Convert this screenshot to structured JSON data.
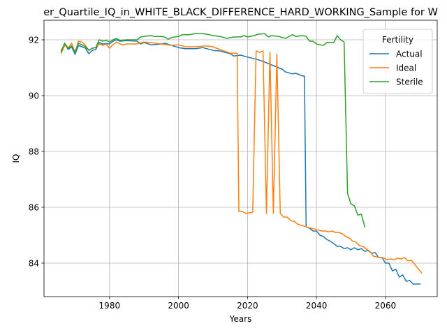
{
  "chart_data": {
    "type": "line",
    "title": "er_Quartile_IQ_in_WHITE_BLACK_DIFFERENCE_HARD_WORKING_Sample for W",
    "xlabel": "Years",
    "ylabel": "IQ",
    "xlim": [
      1961,
      2075
    ],
    "ylim": [
      82.8,
      92.7
    ],
    "x_ticks": [
      1980,
      2000,
      2020,
      2040,
      2060
    ],
    "y_ticks": [
      84,
      86,
      88,
      90,
      92
    ],
    "grid": true,
    "legend": {
      "title": "Fertility",
      "placement": "top-right"
    },
    "series": [
      {
        "name": "Actual",
        "color": "#1f77b4",
        "points": [
          [
            1966,
            91.62
          ],
          [
            1967,
            91.85
          ],
          [
            1968,
            91.65
          ],
          [
            1969,
            91.75
          ],
          [
            1970,
            91.48
          ],
          [
            1971,
            91.8
          ],
          [
            1972,
            91.75
          ],
          [
            1973,
            91.7
          ],
          [
            1974,
            91.5
          ],
          [
            1975,
            91.62
          ],
          [
            1976,
            91.65
          ],
          [
            1977,
            91.9
          ],
          [
            1978,
            91.85
          ],
          [
            1979,
            91.87
          ],
          [
            1980,
            91.85
          ],
          [
            1981,
            91.95
          ],
          [
            1982,
            92.0
          ],
          [
            1983,
            91.95
          ],
          [
            1985,
            91.97
          ],
          [
            1988,
            91.95
          ],
          [
            1989,
            91.85
          ],
          [
            1990,
            91.9
          ],
          [
            1992,
            91.82
          ],
          [
            1995,
            91.85
          ],
          [
            1996,
            91.88
          ],
          [
            1998,
            91.8
          ],
          [
            2000,
            91.72
          ],
          [
            2002,
            91.68
          ],
          [
            2005,
            91.68
          ],
          [
            2007,
            91.72
          ],
          [
            2010,
            91.62
          ],
          [
            2012,
            91.6
          ],
          [
            2015,
            91.5
          ],
          [
            2016,
            91.42
          ],
          [
            2018,
            91.45
          ],
          [
            2020,
            91.38
          ],
          [
            2022,
            91.32
          ],
          [
            2024,
            91.25
          ],
          [
            2026,
            91.15
          ],
          [
            2028,
            91.05
          ],
          [
            2030,
            90.95
          ],
          [
            2031,
            90.85
          ],
          [
            2033,
            90.78
          ],
          [
            2034,
            90.8
          ],
          [
            2036,
            90.7
          ],
          [
            2036.5,
            90.7
          ],
          [
            2037,
            85.3
          ],
          [
            2038,
            85.25
          ],
          [
            2039,
            85.15
          ],
          [
            2040,
            85.15
          ],
          [
            2041,
            85.0
          ],
          [
            2042,
            84.95
          ],
          [
            2043,
            84.85
          ],
          [
            2044,
            84.78
          ],
          [
            2045,
            84.7
          ],
          [
            2046,
            84.6
          ],
          [
            2047,
            84.6
          ],
          [
            2048,
            84.52
          ],
          [
            2049,
            84.55
          ],
          [
            2050,
            84.48
          ],
          [
            2051,
            84.55
          ],
          [
            2052,
            84.48
          ],
          [
            2053,
            84.52
          ],
          [
            2054,
            84.42
          ],
          [
            2055,
            84.45
          ],
          [
            2056,
            84.35
          ],
          [
            2057,
            84.38
          ],
          [
            2058,
            84.2
          ],
          [
            2059,
            84.2
          ],
          [
            2060,
            84.0
          ],
          [
            2061,
            84.0
          ],
          [
            2062,
            83.72
          ],
          [
            2063,
            83.78
          ],
          [
            2064,
            83.5
          ],
          [
            2065,
            83.58
          ],
          [
            2066,
            83.35
          ],
          [
            2067,
            83.38
          ],
          [
            2068,
            83.25
          ],
          [
            2069,
            83.25
          ],
          [
            2070,
            83.25
          ]
        ]
      },
      {
        "name": "Ideal",
        "color": "#ff7f0e",
        "points": [
          [
            1966,
            91.52
          ],
          [
            1967,
            91.8
          ],
          [
            1968,
            91.7
          ],
          [
            1969,
            91.88
          ],
          [
            1970,
            91.55
          ],
          [
            1971,
            91.95
          ],
          [
            1972,
            91.92
          ],
          [
            1973,
            91.8
          ],
          [
            1974,
            91.62
          ],
          [
            1975,
            91.7
          ],
          [
            1976,
            91.72
          ],
          [
            1977,
            91.85
          ],
          [
            1978,
            91.8
          ],
          [
            1979,
            91.85
          ],
          [
            1980,
            91.7
          ],
          [
            1981,
            91.82
          ],
          [
            1982,
            91.92
          ],
          [
            1983,
            91.85
          ],
          [
            1984,
            91.82
          ],
          [
            1985,
            91.85
          ],
          [
            1988,
            91.85
          ],
          [
            1990,
            91.92
          ],
          [
            1992,
            91.9
          ],
          [
            1995,
            91.85
          ],
          [
            1998,
            91.8
          ],
          [
            2000,
            91.82
          ],
          [
            2002,
            91.75
          ],
          [
            2005,
            91.75
          ],
          [
            2008,
            91.78
          ],
          [
            2010,
            91.75
          ],
          [
            2012,
            91.65
          ],
          [
            2015,
            91.52
          ],
          [
            2017,
            91.52
          ],
          [
            2017.5,
            85.85
          ],
          [
            2018.5,
            85.85
          ],
          [
            2019.5,
            85.78
          ],
          [
            2021.5,
            85.82
          ],
          [
            2022.5,
            91.6
          ],
          [
            2023.5,
            91.55
          ],
          [
            2024.5,
            91.6
          ],
          [
            2025.5,
            85.78
          ],
          [
            2026.5,
            91.55
          ],
          [
            2027.5,
            85.78
          ],
          [
            2028.5,
            91.48
          ],
          [
            2029.5,
            85.78
          ],
          [
            2030.5,
            85.65
          ],
          [
            2031.5,
            85.65
          ],
          [
            2032.5,
            85.52
          ],
          [
            2033.5,
            85.5
          ],
          [
            2034.5,
            85.4
          ],
          [
            2035.5,
            85.35
          ],
          [
            2036.5,
            85.32
          ],
          [
            2037.5,
            85.28
          ],
          [
            2038.5,
            85.25
          ],
          [
            2039.5,
            85.22
          ],
          [
            2040.5,
            85.18
          ],
          [
            2041.5,
            85.15
          ],
          [
            2042.5,
            85.15
          ],
          [
            2043.5,
            85.12
          ],
          [
            2044.5,
            85.15
          ],
          [
            2045.5,
            85.1
          ],
          [
            2046.5,
            85.1
          ],
          [
            2047.5,
            85.05
          ],
          [
            2048.5,
            84.95
          ],
          [
            2049.5,
            84.9
          ],
          [
            2050.5,
            84.78
          ],
          [
            2051.5,
            84.75
          ],
          [
            2052.5,
            84.62
          ],
          [
            2053.5,
            84.6
          ],
          [
            2054.5,
            84.5
          ],
          [
            2055.5,
            84.42
          ],
          [
            2056.5,
            84.25
          ],
          [
            2057.5,
            84.22
          ],
          [
            2058.5,
            84.2
          ],
          [
            2059.5,
            84.18
          ],
          [
            2060.5,
            84.12
          ],
          [
            2061.5,
            84.15
          ],
          [
            2062.5,
            84.12
          ],
          [
            2063.5,
            84.18
          ],
          [
            2064.5,
            84.15
          ],
          [
            2065.5,
            84.2
          ],
          [
            2066.5,
            84.08
          ],
          [
            2067.5,
            84.1
          ],
          [
            2068.5,
            83.95
          ],
          [
            2069.5,
            83.8
          ],
          [
            2070.5,
            83.65
          ]
        ]
      },
      {
        "name": "Sterile",
        "color": "#2ca02c",
        "points": [
          [
            1966,
            91.58
          ],
          [
            1967,
            91.88
          ],
          [
            1968,
            91.7
          ],
          [
            1969,
            91.78
          ],
          [
            1970,
            91.55
          ],
          [
            1971,
            91.88
          ],
          [
            1972,
            91.82
          ],
          [
            1973,
            91.75
          ],
          [
            1974,
            91.62
          ],
          [
            1975,
            91.7
          ],
          [
            1976,
            91.72
          ],
          [
            1977,
            92.0
          ],
          [
            1978,
            91.95
          ],
          [
            1979,
            91.98
          ],
          [
            1980,
            91.92
          ],
          [
            1981,
            92.0
          ],
          [
            1982,
            92.05
          ],
          [
            1983,
            91.98
          ],
          [
            1985,
            92.0
          ],
          [
            1988,
            92.0
          ],
          [
            1989,
            92.1
          ],
          [
            1990,
            92.12
          ],
          [
            1992,
            92.15
          ],
          [
            1993,
            92.12
          ],
          [
            1995,
            92.12
          ],
          [
            1996,
            92.1
          ],
          [
            1997,
            92.02
          ],
          [
            1998,
            92.08
          ],
          [
            2000,
            92.12
          ],
          [
            2001,
            92.18
          ],
          [
            2003,
            92.18
          ],
          [
            2005,
            92.22
          ],
          [
            2007,
            92.22
          ],
          [
            2009,
            92.18
          ],
          [
            2010,
            92.15
          ],
          [
            2012,
            92.12
          ],
          [
            2014,
            92.05
          ],
          [
            2016,
            92.1
          ],
          [
            2018,
            92.1
          ],
          [
            2019,
            92.15
          ],
          [
            2020,
            92.1
          ],
          [
            2022,
            92.15
          ],
          [
            2023,
            92.2
          ],
          [
            2025,
            92.22
          ],
          [
            2026,
            92.1
          ],
          [
            2027,
            92.15
          ],
          [
            2029,
            92.12
          ],
          [
            2031,
            92.05
          ],
          [
            2033,
            92.18
          ],
          [
            2034,
            92.12
          ],
          [
            2036,
            92.15
          ],
          [
            2037,
            92.12
          ],
          [
            2038,
            91.95
          ],
          [
            2039,
            91.95
          ],
          [
            2040,
            91.85
          ],
          [
            2041,
            91.82
          ],
          [
            2042,
            91.8
          ],
          [
            2043,
            91.9
          ],
          [
            2045,
            91.9
          ],
          [
            2046,
            92.15
          ],
          [
            2047,
            92.0
          ],
          [
            2048,
            91.92
          ],
          [
            2049,
            86.5
          ],
          [
            2050,
            86.12
          ],
          [
            2051,
            86.05
          ],
          [
            2052,
            85.72
          ],
          [
            2053,
            85.75
          ],
          [
            2054,
            85.3
          ]
        ]
      }
    ]
  }
}
